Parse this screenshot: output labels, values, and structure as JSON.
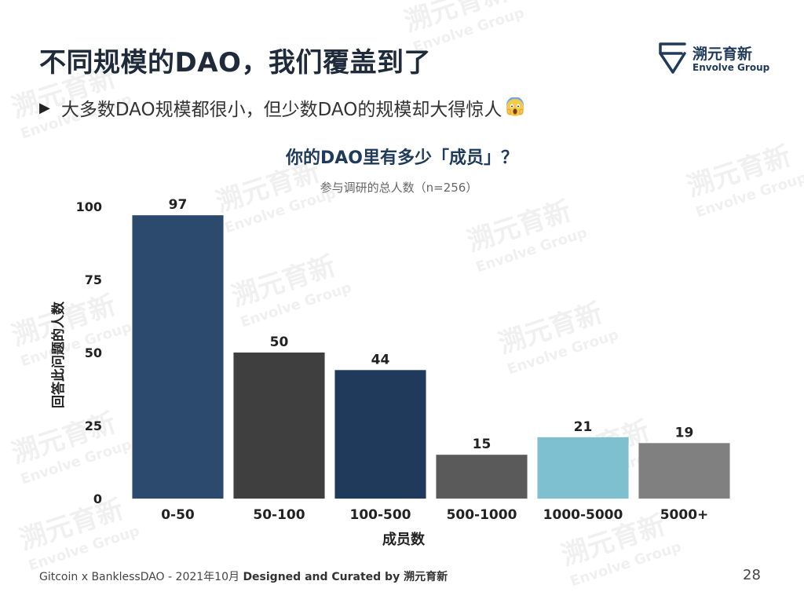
{
  "slide": {
    "title": "不同规模的DAO，我们覆盖到了",
    "bullet": "大多数DAO规模都很小，但少数DAO的规模却大得惊人",
    "logo": {
      "cn": "溯元育新",
      "en": "Envolve Group"
    },
    "footer": {
      "prefix": "Gitcoin x BanklessDAO - 2021年10月 ",
      "designed": "Designed and Curated by 溯元育新"
    },
    "page_number": "28"
  },
  "chart_data": {
    "type": "bar",
    "title": "你的DAO里有多少「成员」？",
    "subtitle": "参与调研的总人数（n=256）",
    "xlabel": "成员数",
    "ylabel": "回答此问题的人数",
    "categories": [
      "0-50",
      "50-100",
      "100-500",
      "500-1000",
      "1000-5000",
      "5000+"
    ],
    "values": [
      97,
      50,
      44,
      15,
      21,
      19
    ],
    "colors": [
      "#2c4a6e",
      "#3f3f3f",
      "#1f3a5a",
      "#5a5a5a",
      "#7fc0d0",
      "#808080"
    ],
    "ylim": [
      0,
      100
    ],
    "yticks": [
      0,
      25,
      50,
      75,
      100
    ],
    "grid": false,
    "legend": "none"
  }
}
